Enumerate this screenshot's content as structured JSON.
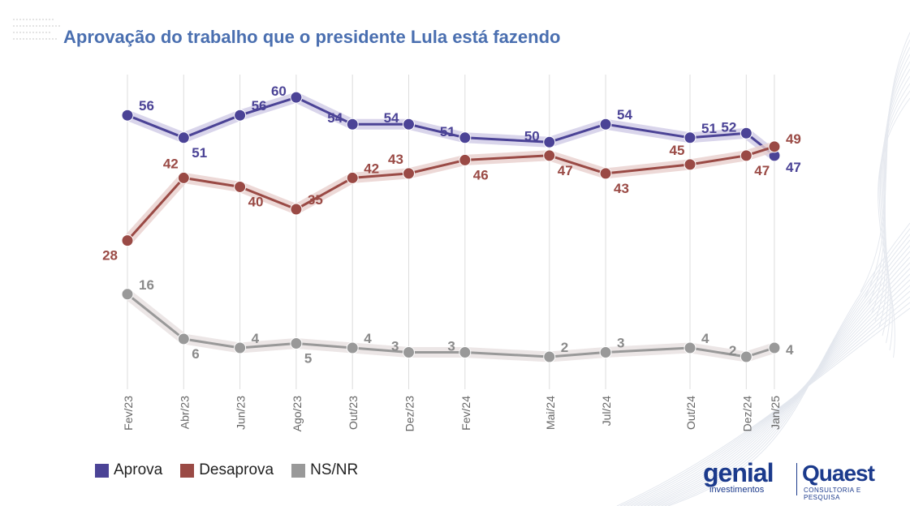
{
  "title": "Aprovação do trabalho que o presidente Lula está fazendo",
  "legend": [
    {
      "label": "Aprova",
      "color": "#4b4396"
    },
    {
      "label": "Desaprova",
      "color": "#9a4a45"
    },
    {
      "label": "NS/NR",
      "color": "#999999"
    }
  ],
  "logos": {
    "genial": "genial",
    "genial_sub": "investimentos",
    "quaest": "Quaest",
    "quaest_sub": "CONSULTORIA E PESQUISA"
  },
  "chart_data": {
    "type": "line",
    "title": "Aprovação do trabalho que o presidente Lula está fazendo",
    "x": [
      "2023-02",
      "2023-04",
      "2023-06",
      "2023-08",
      "2023-10",
      "2023-12",
      "2024-02",
      "2024-05",
      "2024-07",
      "2024-10",
      "2024-12",
      "2025-01"
    ],
    "tick_labels": [
      "Fev/23",
      "Abr/23",
      "Jun/23",
      "Ago/23",
      "Out/23",
      "Dez/23",
      "Fev/24",
      "Mai/24",
      "Jul/24",
      "Out/24",
      "Dez/24",
      "Jan/25"
    ],
    "series": [
      {
        "name": "Aprova",
        "color": "#4b4396",
        "values": [
          56,
          51,
          56,
          60,
          54,
          54,
          51,
          50,
          54,
          51,
          52,
          47
        ]
      },
      {
        "name": "Desaprova",
        "color": "#9a4a45",
        "values": [
          28,
          42,
          40,
          35,
          42,
          43,
          46,
          47,
          43,
          45,
          47,
          49
        ]
      },
      {
        "name": "NS/NR",
        "color": "#999999",
        "values": [
          16,
          6,
          4,
          5,
          4,
          3,
          3,
          2,
          3,
          4,
          2,
          4
        ]
      }
    ],
    "label_pos": [
      [
        "right",
        "below",
        "right",
        "left",
        "left",
        "left",
        "left",
        "left",
        "right",
        "right",
        "left",
        "right"
      ],
      [
        "left",
        "above",
        "below",
        "right",
        "right",
        "above",
        "below",
        "below",
        "below",
        "above",
        "below",
        "right"
      ],
      [
        "right",
        "below",
        "right",
        "below",
        "right",
        "left",
        "left",
        "right",
        "right",
        "right",
        "left",
        "right"
      ]
    ],
    "xlabel": "",
    "ylabel": "",
    "grid": "vertical",
    "legend_position": "bottom-left"
  }
}
